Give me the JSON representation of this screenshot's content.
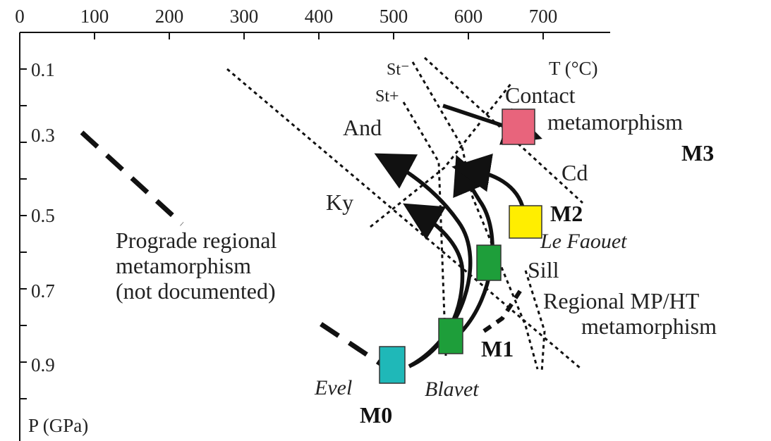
{
  "axes": {
    "x_ticks": [
      "0",
      "100",
      "200",
      "300",
      "400",
      "500",
      "600",
      "700"
    ],
    "y_ticks": [
      "0.1",
      "0.3",
      "0.5",
      "0.7",
      "0.9"
    ],
    "x_label": "T (°C)",
    "y_label": "P (GPa)"
  },
  "reactions": {
    "st_minus": "St⁻",
    "st_plus": "St+",
    "and": "And",
    "ky": "Ky",
    "sill": "Sill",
    "cd": "Cd"
  },
  "labels": {
    "prograde": [
      "Prograde regional",
      "metamorphism",
      "(not documented)"
    ],
    "contact": [
      "Contact",
      "metamorphism"
    ],
    "regional": [
      "Regional MP/HT",
      "metamorphism"
    ]
  },
  "stages": {
    "m0": {
      "name": "M0",
      "locality": "Evel",
      "color": "#1fb8b8"
    },
    "m1": {
      "name": "M1",
      "locality": "Blavet",
      "color": "#1e9e3a"
    },
    "m2": {
      "name": "M2",
      "locality": "Le Faouet",
      "color": "#ffee00"
    },
    "m3": {
      "name": "M3",
      "color": "#e8647c"
    }
  }
}
